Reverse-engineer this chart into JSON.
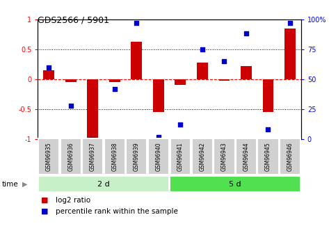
{
  "title": "GDS2566 / 5901",
  "samples": [
    "GSM96935",
    "GSM96936",
    "GSM96937",
    "GSM96938",
    "GSM96939",
    "GSM96940",
    "GSM96941",
    "GSM96942",
    "GSM96943",
    "GSM96944",
    "GSM96945",
    "GSM96946"
  ],
  "log2_ratio": [
    0.15,
    -0.05,
    -1.0,
    -0.05,
    0.62,
    -0.55,
    -0.1,
    0.28,
    -0.03,
    0.22,
    -0.55,
    0.85
  ],
  "percentile_rank": [
    60,
    28,
    0,
    42,
    97,
    2,
    12,
    75,
    65,
    88,
    8,
    97
  ],
  "groups": [
    {
      "label": "2 d",
      "start": 0,
      "end": 6,
      "color": "#c8f0c8"
    },
    {
      "label": "5 d",
      "start": 6,
      "end": 12,
      "color": "#50e050"
    }
  ],
  "bar_color": "#cc0000",
  "dot_color": "#0000cc",
  "ylim_left": [
    -1.0,
    1.0
  ],
  "ylim_right": [
    0,
    100
  ],
  "left_yticks": [
    -1,
    -0.5,
    0,
    0.5,
    1
  ],
  "left_yticklabels": [
    "-1",
    "-0.5",
    "0",
    "0.5",
    "1"
  ],
  "right_yticks": [
    0,
    25,
    50,
    75,
    100
  ],
  "right_yticklabels": [
    "0",
    "25",
    "50",
    "75",
    "100%"
  ],
  "hlines_dotted": [
    0.5,
    -0.5
  ],
  "hline_dashed": 0.0,
  "time_label": "time",
  "legend_bar": "log2 ratio",
  "legend_dot": "percentile rank within the sample",
  "bg_color": "#ffffff",
  "cell_bg": "#d0d0d0",
  "bar_width": 0.5
}
